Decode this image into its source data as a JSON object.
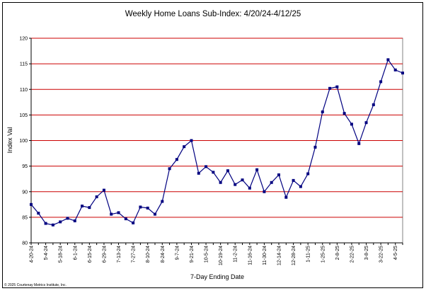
{
  "chart_data": {
    "type": "line",
    "title": "Weekly Home Loans Sub-Index: 4/20/24-4/12/25",
    "xlabel": "7-Day Ending Date",
    "ylabel": "Index Val",
    "ylim": [
      80,
      120
    ],
    "yticks": [
      80,
      85,
      90,
      95,
      100,
      105,
      110,
      115,
      120
    ],
    "grid": true,
    "plot_background": "#ffffff",
    "grid_color": "#cc0000",
    "line_color": "#000080",
    "marker": "square",
    "tick_labels": [
      "4-20-24",
      "5-4-24",
      "5-18-24",
      "6-1-24",
      "6-15-24",
      "6-29-24",
      "7-13-24",
      "7-27-24",
      "8-10-24",
      "8-24-24",
      "9-7-24",
      "9-21-24",
      "10-5-24",
      "10-19-24",
      "11-2-24",
      "11-16-24",
      "11-30-24",
      "12-14-24",
      "12-28-24",
      "1-11-25",
      "1-25-25",
      "2-8-25",
      "2-22-25",
      "3-8-25",
      "3-22-25",
      "4-5-25"
    ],
    "x": [
      "4-20-24",
      "4-27-24",
      "5-4-24",
      "5-11-24",
      "5-18-24",
      "5-25-24",
      "6-1-24",
      "6-8-24",
      "6-15-24",
      "6-22-24",
      "6-29-24",
      "7-6-24",
      "7-13-24",
      "7-20-24",
      "7-27-24",
      "8-3-24",
      "8-10-24",
      "8-17-24",
      "8-24-24",
      "8-31-24",
      "9-7-24",
      "9-14-24",
      "9-21-24",
      "9-28-24",
      "10-5-24",
      "10-12-24",
      "10-19-24",
      "10-26-24",
      "11-2-24",
      "11-9-24",
      "11-16-24",
      "11-23-24",
      "11-30-24",
      "12-7-24",
      "12-14-24",
      "12-21-24",
      "12-28-24",
      "1-4-25",
      "1-11-25",
      "1-18-25",
      "1-25-25",
      "2-1-25",
      "2-8-25",
      "2-15-25",
      "2-22-25",
      "3-1-25",
      "3-8-25",
      "3-15-25",
      "3-22-25",
      "3-29-25",
      "4-5-25",
      "4-12-25"
    ],
    "values": [
      87.5,
      85.8,
      83.8,
      83.5,
      84.1,
      84.8,
      84.3,
      87.2,
      86.9,
      89.0,
      90.3,
      85.6,
      85.9,
      84.7,
      83.9,
      87.0,
      86.8,
      85.6,
      88.1,
      94.5,
      96.3,
      98.8,
      100.0,
      93.6,
      94.9,
      93.8,
      91.8,
      94.1,
      91.4,
      92.3,
      90.7,
      94.3,
      90.0,
      91.8,
      93.3,
      88.9,
      92.2,
      91.0,
      93.5,
      98.7,
      105.6,
      110.2,
      110.5,
      105.3,
      103.2,
      99.4,
      103.5,
      107.0,
      111.5,
      115.8,
      113.8,
      113.2
    ]
  },
  "footer": {
    "copyright": "© 2025 Courtenay Metrics Institute, Inc."
  }
}
